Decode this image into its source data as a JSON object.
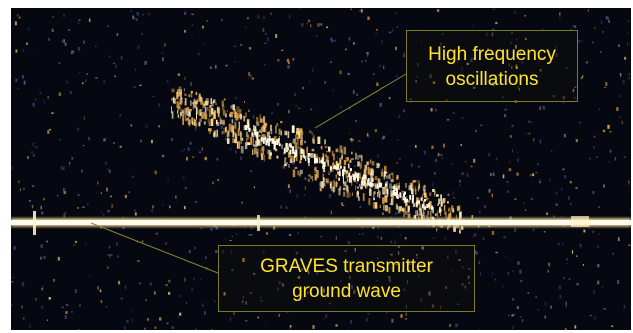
{
  "image": {
    "annotations": [
      {
        "lines": [
          "High frequency",
          "oscillations"
        ]
      },
      {
        "lines": [
          "GRAVES  transmitter",
          "ground wave"
        ]
      }
    ],
    "colors": {
      "background": "#050711",
      "echo": "#ffd57a",
      "ground_wave": "#fff4cf",
      "annotation_text": "#ffe22d",
      "annotation_border": "#7d7a2a"
    }
  }
}
